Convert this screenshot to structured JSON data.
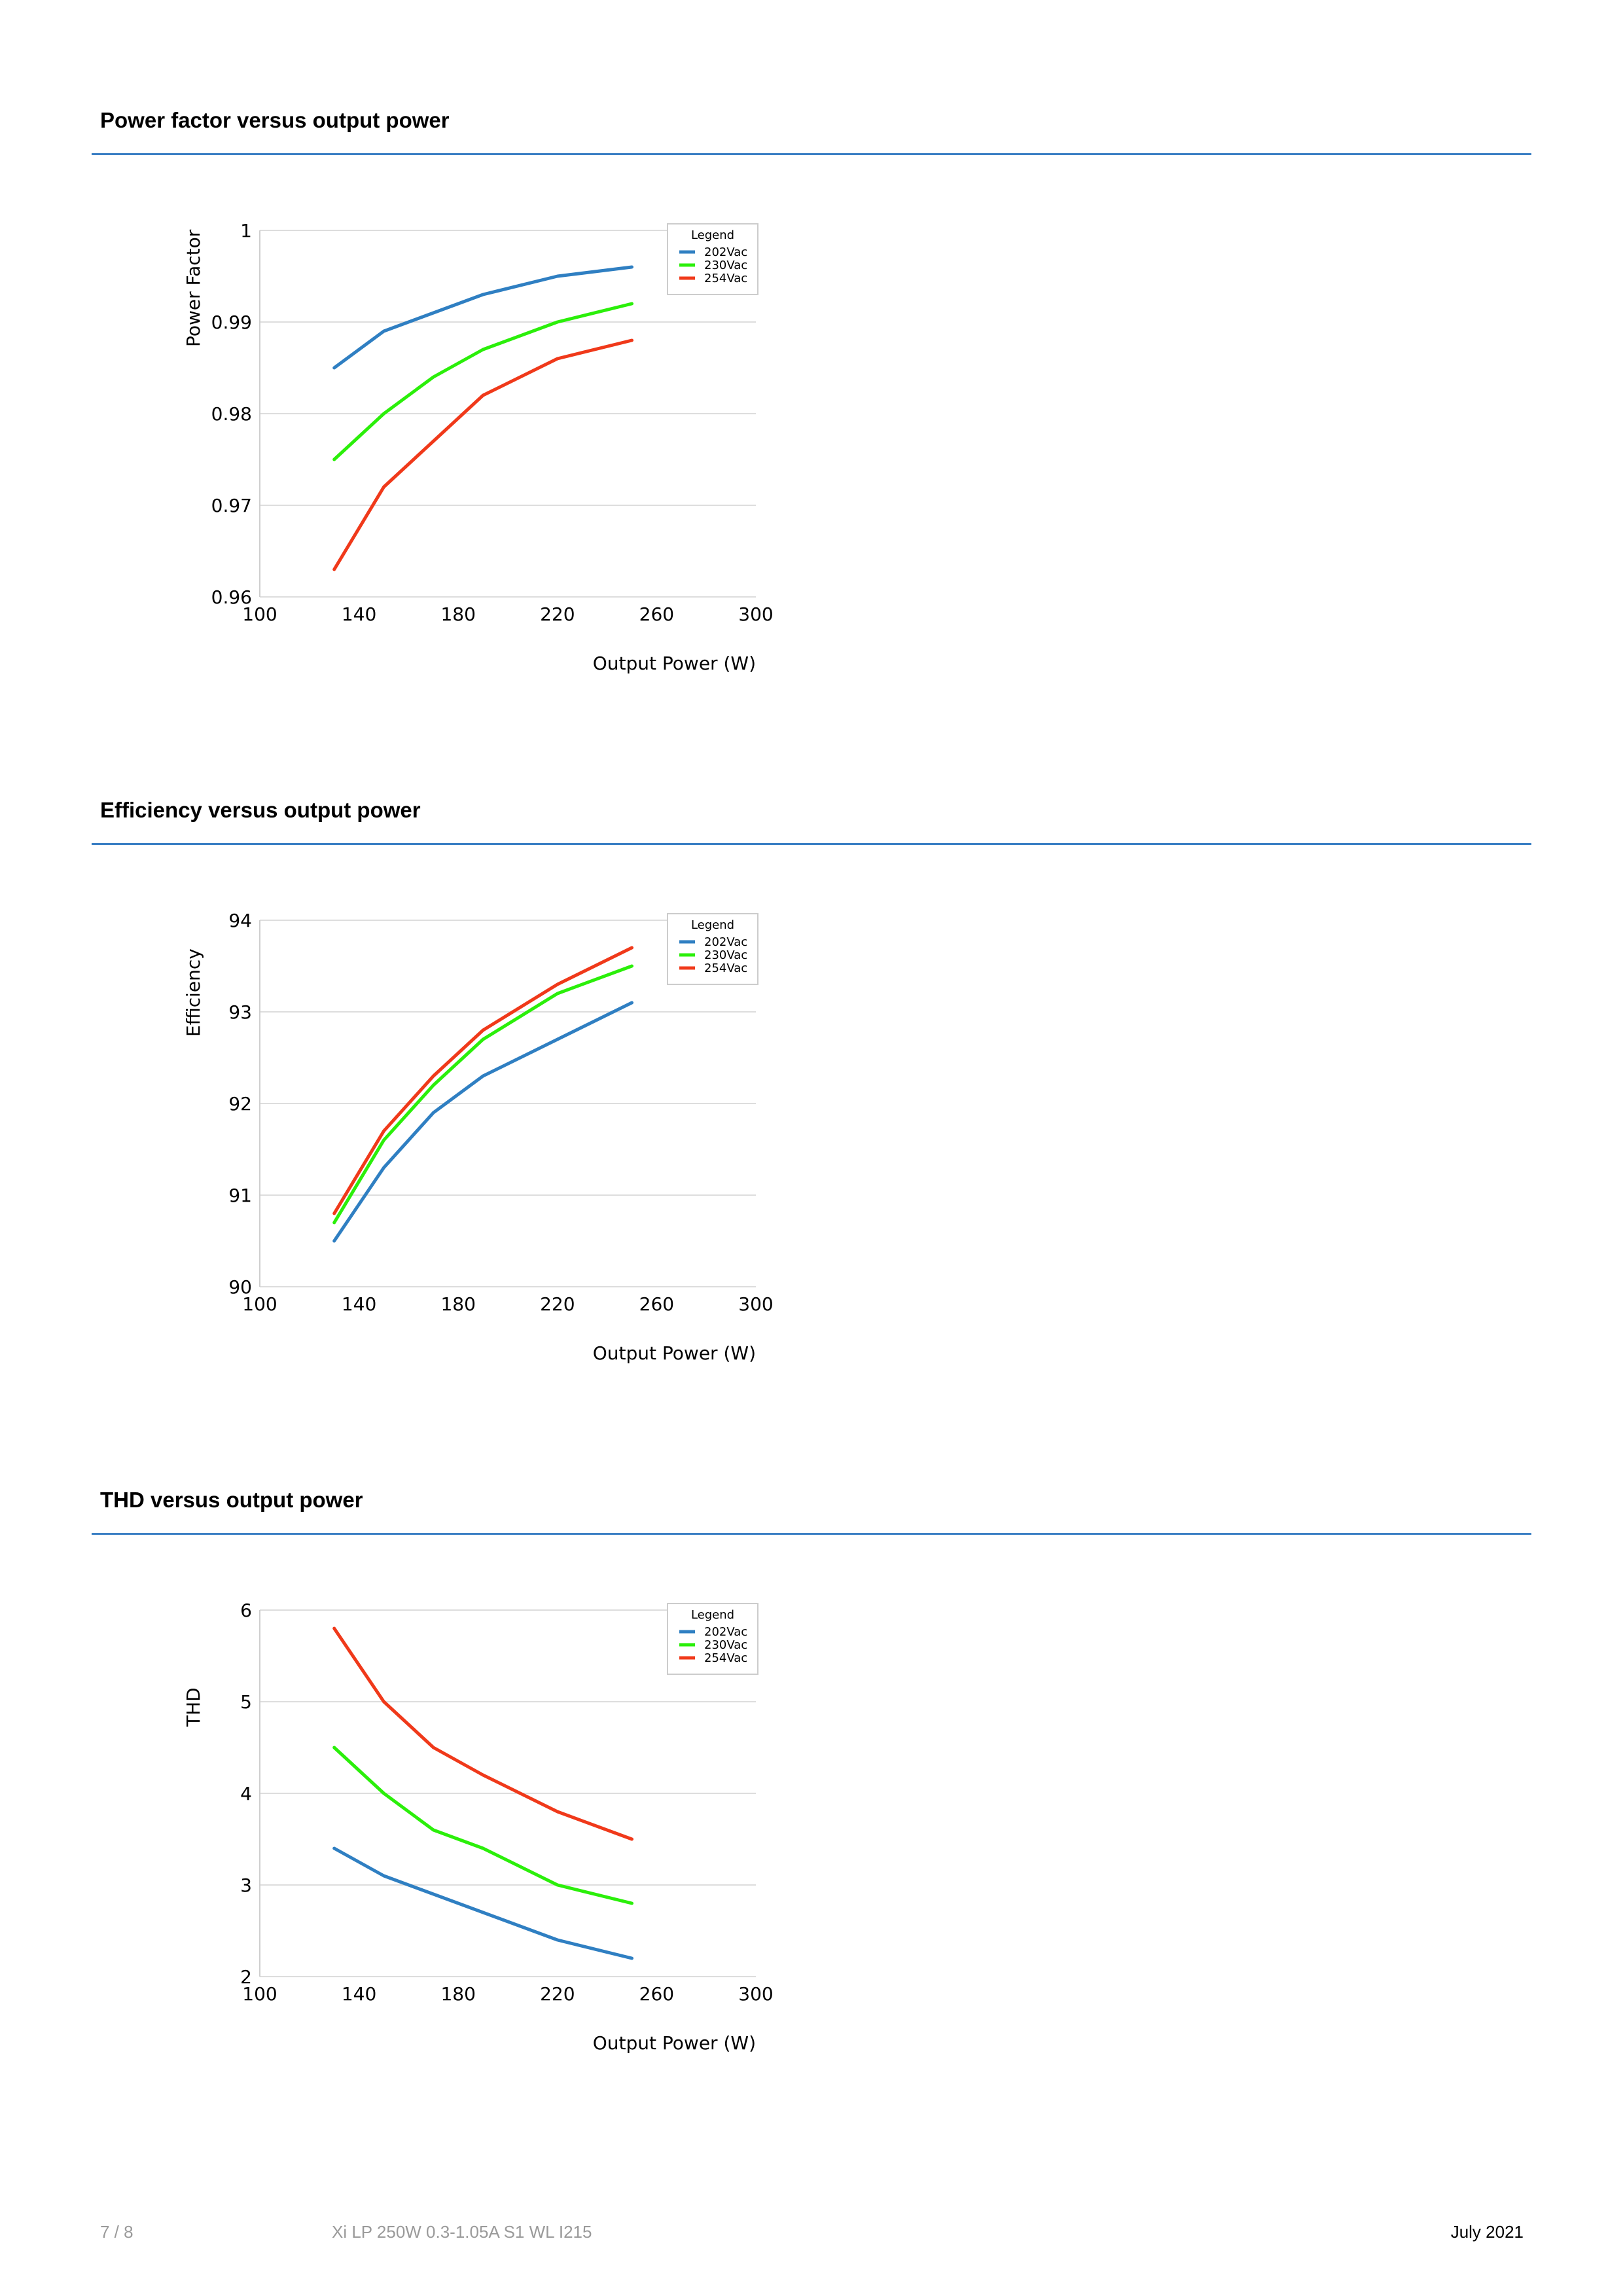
{
  "colors": {
    "202Vac": "#2f7fc2",
    "230Vac": "#2bef0a",
    "254Vac": "#f0391a",
    "rule": "#3b7fc4"
  },
  "sections": [
    {
      "title": "Power factor versus output power"
    },
    {
      "title": "Efficiency versus output power"
    },
    {
      "title": "THD versus output power"
    }
  ],
  "footer": {
    "page": "7 / 8",
    "doc": "Xi LP 250W 0.3-1.05A S1 WL I215",
    "date": "July 2021"
  },
  "chart_data": [
    {
      "type": "line",
      "xlabel": "Output Power (W)",
      "ylabel": "Power Factor",
      "xlim": [
        100,
        300
      ],
      "ylim": [
        0.96,
        1
      ],
      "xticks": [
        "100",
        "140",
        "180",
        "220",
        "260",
        "300"
      ],
      "yticks": [
        "0.96",
        "0.97",
        "0.98",
        "0.99",
        "1"
      ],
      "grid": true,
      "legend": {
        "title": "Legend",
        "position": "top-right"
      },
      "x": [
        130,
        150,
        170,
        190,
        220,
        250
      ],
      "series": [
        {
          "name": "202Vac",
          "color": "#2f7fc2",
          "values": [
            0.985,
            0.989,
            0.991,
            0.993,
            0.995,
            0.996
          ]
        },
        {
          "name": "230Vac",
          "color": "#2bef0a",
          "values": [
            0.975,
            0.98,
            0.984,
            0.987,
            0.99,
            0.992
          ]
        },
        {
          "name": "254Vac",
          "color": "#f0391a",
          "values": [
            0.963,
            0.972,
            0.977,
            0.982,
            0.986,
            0.988
          ]
        }
      ]
    },
    {
      "type": "line",
      "xlabel": "Output Power (W)",
      "ylabel": "Efficiency",
      "xlim": [
        100,
        300
      ],
      "ylim": [
        90,
        94
      ],
      "xticks": [
        "100",
        "140",
        "180",
        "220",
        "260",
        "300"
      ],
      "yticks": [
        "90",
        "91",
        "92",
        "93",
        "94"
      ],
      "grid": true,
      "legend": {
        "title": "Legend",
        "position": "top-right"
      },
      "x": [
        130,
        150,
        170,
        190,
        220,
        250
      ],
      "series": [
        {
          "name": "202Vac",
          "color": "#2f7fc2",
          "values": [
            90.5,
            91.3,
            91.9,
            92.3,
            92.7,
            93.1
          ]
        },
        {
          "name": "230Vac",
          "color": "#2bef0a",
          "values": [
            90.7,
            91.6,
            92.2,
            92.7,
            93.2,
            93.5
          ]
        },
        {
          "name": "254Vac",
          "color": "#f0391a",
          "values": [
            90.8,
            91.7,
            92.3,
            92.8,
            93.3,
            93.7
          ]
        }
      ]
    },
    {
      "type": "line",
      "xlabel": "Output Power (W)",
      "ylabel": "THD",
      "xlim": [
        100,
        300
      ],
      "ylim": [
        2,
        6
      ],
      "xticks": [
        "100",
        "140",
        "180",
        "220",
        "260",
        "300"
      ],
      "yticks": [
        "2",
        "3",
        "4",
        "5",
        "6"
      ],
      "grid": true,
      "legend": {
        "title": "Legend",
        "position": "top-right"
      },
      "x": [
        130,
        150,
        170,
        190,
        220,
        250
      ],
      "series": [
        {
          "name": "202Vac",
          "color": "#2f7fc2",
          "values": [
            3.4,
            3.1,
            2.9,
            2.7,
            2.4,
            2.2
          ]
        },
        {
          "name": "230Vac",
          "color": "#2bef0a",
          "values": [
            4.5,
            4.0,
            3.6,
            3.4,
            3.0,
            2.8
          ]
        },
        {
          "name": "254Vac",
          "color": "#f0391a",
          "values": [
            5.8,
            5.0,
            4.5,
            4.2,
            3.8,
            3.5
          ]
        }
      ]
    }
  ]
}
